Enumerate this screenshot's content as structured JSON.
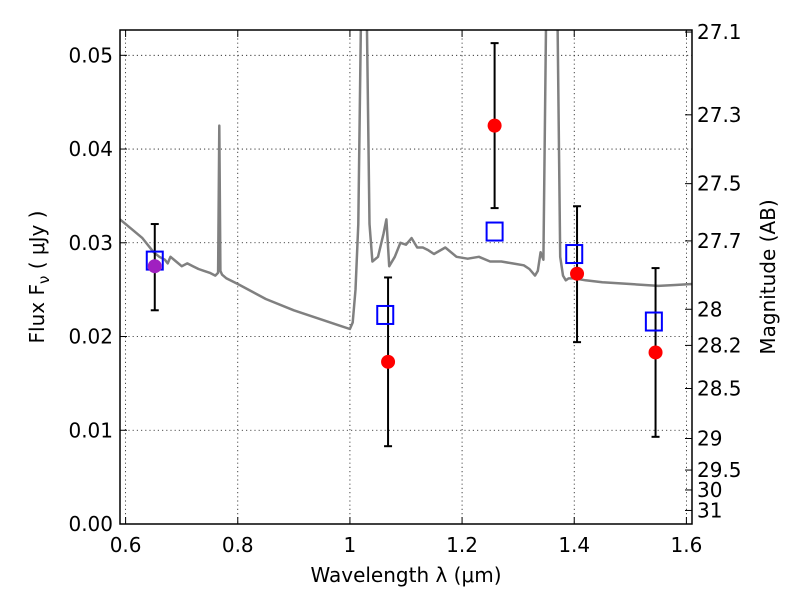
{
  "chart_data": {
    "type": "scatter",
    "xlabel": "Wavelength  λ (μm)",
    "ylabel": "Flux  F_ν  ( μJy )",
    "ylabel_right": "Magnitude (AB)",
    "xlim": [
      0.59,
      1.61
    ],
    "ylim": [
      0.0,
      0.0527
    ],
    "grid": true,
    "x_ticks": [
      "0.6",
      "0.8",
      "1",
      "1.2",
      "1.4",
      "1.6"
    ],
    "x_tick_values": [
      0.6,
      0.8,
      1.0,
      1.2,
      1.4,
      1.6
    ],
    "y_ticks": [
      "0.00",
      "0.01",
      "0.02",
      "0.03",
      "0.04",
      "0.05"
    ],
    "y_tick_values": [
      0.0,
      0.01,
      0.02,
      0.03,
      0.04,
      0.05
    ],
    "right_ticks": [
      "27.1",
      "27.3",
      "27.5",
      "27.7",
      "28",
      "28.2",
      "28.5",
      "29",
      "29.5",
      "30",
      "31"
    ],
    "right_tick_values": [
      27.1,
      27.3,
      27.5,
      27.7,
      28.0,
      28.2,
      28.5,
      29.0,
      29.5,
      30.0,
      31.0
    ],
    "series": [
      {
        "kind": "model_sed",
        "color": "#808080",
        "x": [
          0.59,
          0.61,
          0.63,
          0.65,
          0.66,
          0.67,
          0.675,
          0.68,
          0.69,
          0.7,
          0.71,
          0.72,
          0.73,
          0.74,
          0.75,
          0.76,
          0.765,
          0.767,
          0.769,
          0.772,
          0.78,
          0.8,
          0.85,
          0.9,
          0.95,
          0.98,
          1.0,
          1.005,
          1.01,
          1.015,
          1.02,
          1.025,
          1.03,
          1.035,
          1.04,
          1.05,
          1.06,
          1.065,
          1.07,
          1.08,
          1.09,
          1.1,
          1.11,
          1.12,
          1.13,
          1.14,
          1.15,
          1.17,
          1.19,
          1.21,
          1.23,
          1.25,
          1.27,
          1.29,
          1.31,
          1.32,
          1.33,
          1.335,
          1.34,
          1.345,
          1.35,
          1.355,
          1.36,
          1.365,
          1.37,
          1.375,
          1.38,
          1.385,
          1.39,
          1.4,
          1.42,
          1.45,
          1.5,
          1.55,
          1.58,
          1.61
        ],
        "y": [
          0.0325,
          0.0315,
          0.0305,
          0.029,
          0.0285,
          0.0282,
          0.0278,
          0.0285,
          0.028,
          0.0275,
          0.0278,
          0.0275,
          0.0272,
          0.027,
          0.0268,
          0.0265,
          0.0268,
          0.0425,
          0.027,
          0.0266,
          0.0262,
          0.0256,
          0.024,
          0.0228,
          0.0218,
          0.0212,
          0.0208,
          0.0215,
          0.025,
          0.032,
          0.055,
          0.055,
          0.055,
          0.032,
          0.028,
          0.0285,
          0.031,
          0.0325,
          0.0275,
          0.0285,
          0.03,
          0.0298,
          0.0305,
          0.0295,
          0.0295,
          0.0292,
          0.0288,
          0.0295,
          0.0285,
          0.0283,
          0.0285,
          0.028,
          0.028,
          0.0278,
          0.0276,
          0.0272,
          0.0265,
          0.027,
          0.029,
          0.0282,
          0.055,
          0.055,
          0.055,
          0.055,
          0.055,
          0.0285,
          0.0265,
          0.026,
          0.0262,
          0.0262,
          0.026,
          0.0258,
          0.0256,
          0.0254,
          0.0255,
          0.0256
        ]
      },
      {
        "kind": "observed",
        "color": "#ff0000",
        "marker": "circle",
        "x": [
          0.652,
          1.068,
          1.258,
          1.405,
          1.545
        ],
        "y": [
          0.0275,
          0.0173,
          0.0425,
          0.0267,
          0.0183
        ],
        "err_low": [
          0.0047,
          0.009,
          0.0088,
          0.0073,
          0.009
        ],
        "err_high": [
          0.0045,
          0.009,
          0.0088,
          0.0072,
          0.009
        ]
      },
      {
        "kind": "model_photometry",
        "color": "#0000ff",
        "marker": "square",
        "x": [
          0.652,
          1.063,
          1.258,
          1.4,
          1.542
        ],
        "y": [
          0.0281,
          0.0223,
          0.0312,
          0.0288,
          0.0216
        ]
      }
    ],
    "overlap_marker_color": "#a020c0"
  }
}
